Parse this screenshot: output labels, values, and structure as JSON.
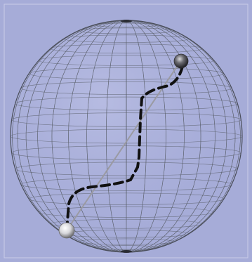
{
  "scene": {
    "background_color": "#a6acd8",
    "sphere_line_color": "#5a5f6a",
    "sphere_highlight_color": "#d8dcf2",
    "latitude_lines": 22,
    "longitude_lines": 36,
    "straight_path_color": "#9a9aa2",
    "dashed_path_color": "#111111"
  },
  "markers": [
    {
      "name": "start-marker",
      "shade": "#f0f0f4",
      "rim": "#6a6a6a"
    },
    {
      "name": "end-marker",
      "shade": "#7d7d82",
      "rim": "#2e2e30"
    }
  ]
}
